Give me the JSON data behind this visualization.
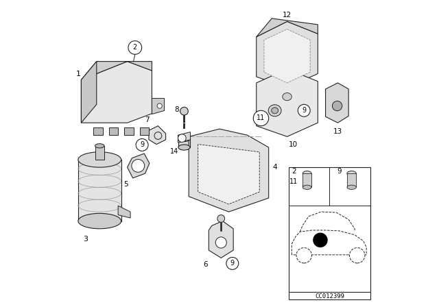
{
  "bg_color": "#ffffff",
  "fig_width": 6.4,
  "fig_height": 4.48,
  "dpi": 100,
  "watermark": "CC012399",
  "lc": "#222222",
  "lw": 0.8
}
